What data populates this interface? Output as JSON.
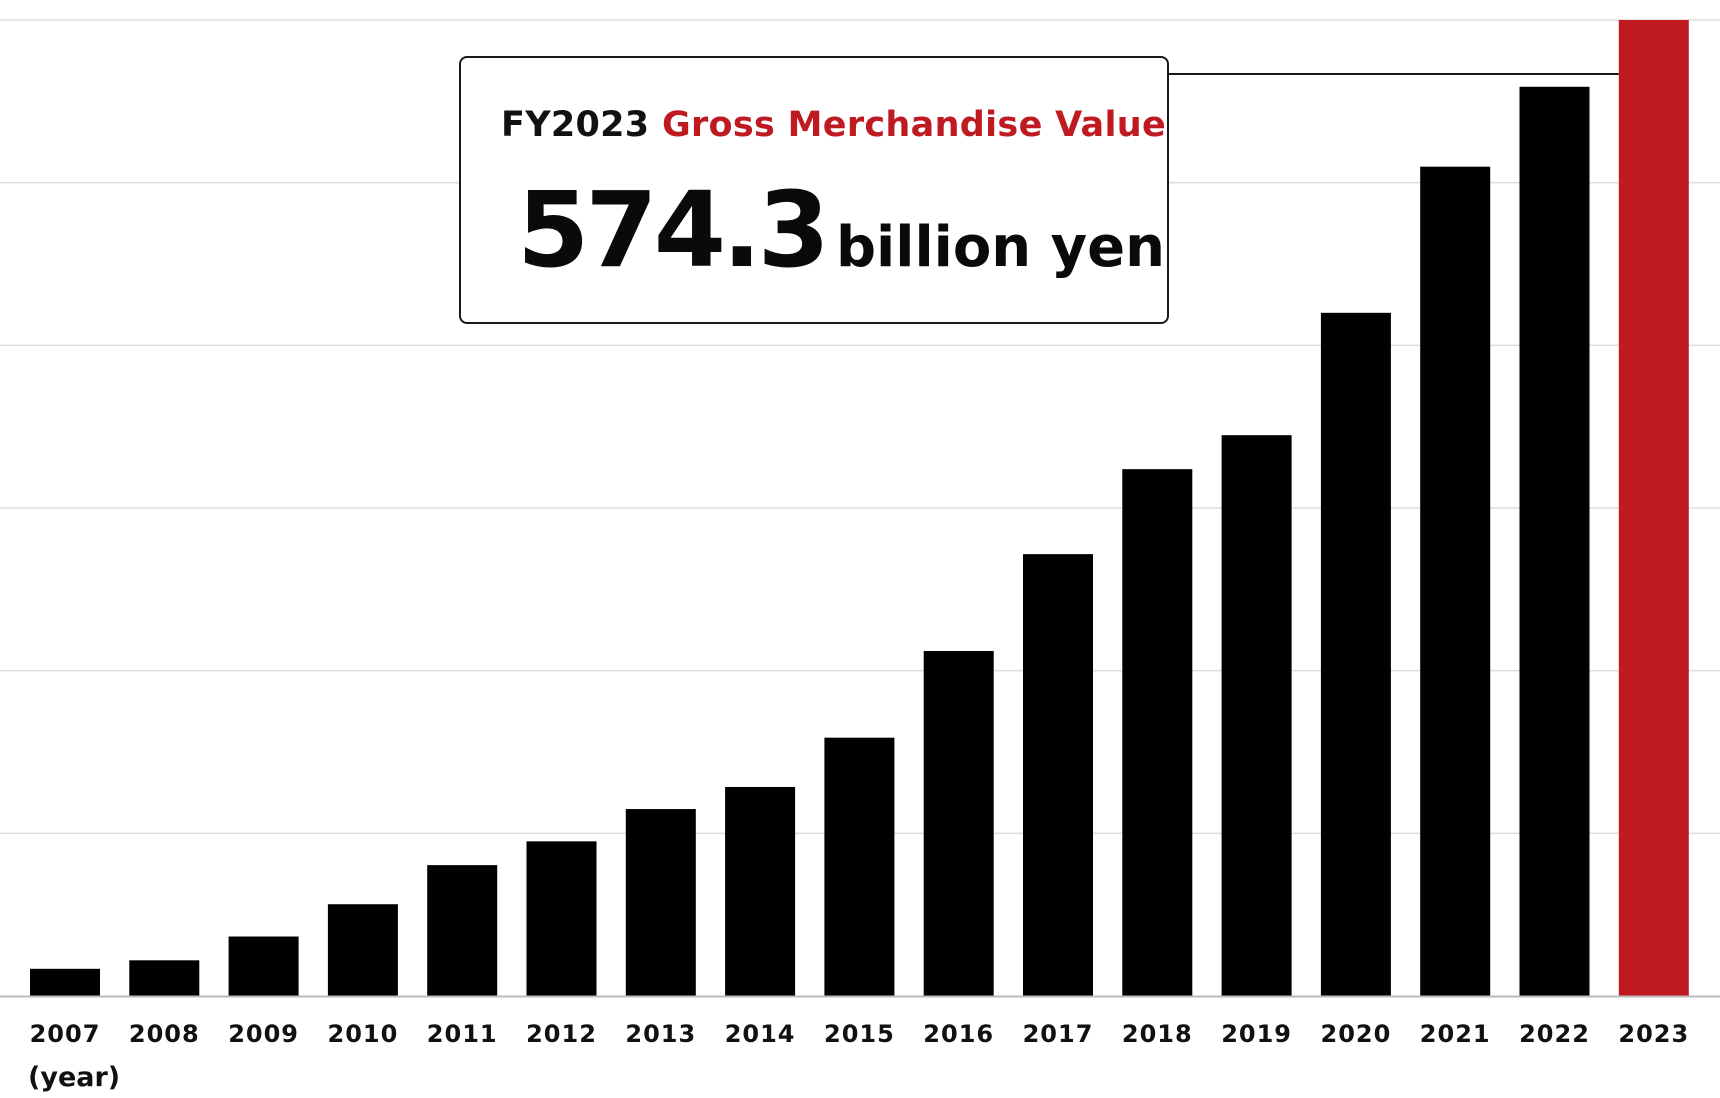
{
  "chart_data": {
    "type": "bar",
    "categories": [
      "2007",
      "2008",
      "2009",
      "2010",
      "2011",
      "2012",
      "2013",
      "2014",
      "2015",
      "2016",
      "2017",
      "2018",
      "2019",
      "2020",
      "2021",
      "2022",
      "2023"
    ],
    "values": [
      16,
      21,
      35,
      54,
      77,
      91,
      110,
      123,
      152,
      203,
      260,
      310,
      330,
      402,
      488,
      535,
      574.3
    ],
    "title": "",
    "xlabel": "(year)",
    "ylabel": "",
    "ylim": [
      0,
      574.3
    ],
    "grid": true,
    "legend": "none",
    "highlight_category": "2023",
    "colors": {
      "bar": "#000000",
      "highlight": "#bf1a21",
      "grid": "#dddddd",
      "axis": "#bbbbbb"
    }
  },
  "callout": {
    "prefix": "FY2023",
    "metric": "Gross Merchandise Value",
    "value": "574.3",
    "unit": "billion yen"
  }
}
